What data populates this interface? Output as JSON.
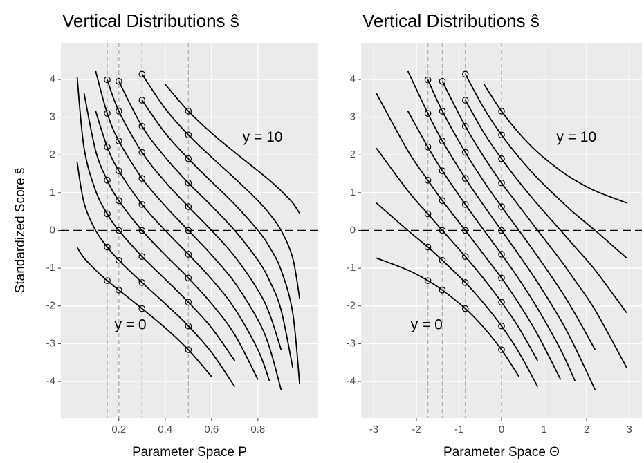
{
  "chart_data": [
    {
      "type": "line",
      "title": "Vertical Distributions ŝ",
      "xlabel": "Parameter Space P",
      "ylabel": "Standardized Score ŝ",
      "color": "#000000",
      "x": [
        0.02,
        0.05,
        0.1,
        0.15,
        0.2,
        0.3,
        0.4,
        0.5,
        0.6,
        0.7,
        0.8,
        0.85,
        0.9,
        0.95,
        0.98
      ],
      "series": [
        {
          "values": [
            -0.45,
            -0.73,
            -1.05,
            -1.33,
            -1.58,
            -2.07,
            -2.58,
            -3.16,
            -3.87,
            null,
            null,
            null,
            null,
            null,
            null
          ]
        },
        {
          "values": [
            1.81,
            0.73,
            0,
            -0.44,
            -0.79,
            -1.38,
            -1.94,
            -2.53,
            -3.23,
            -4.14,
            null,
            null,
            null,
            null,
            null
          ]
        },
        {
          "values": [
            4.07,
            2.18,
            1.05,
            0.44,
            0,
            -0.69,
            -1.29,
            -1.9,
            -2.58,
            -3.45,
            null,
            null,
            null,
            null,
            null
          ]
        },
        {
          "values": [
            null,
            3.63,
            2.11,
            1.33,
            0.79,
            0,
            -0.65,
            -1.26,
            -1.94,
            -2.76,
            -3.95,
            null,
            null,
            null,
            null
          ]
        },
        {
          "values": [
            null,
            null,
            3.16,
            2.21,
            1.58,
            0.69,
            0,
            -0.63,
            -1.29,
            -2.07,
            -3.16,
            -3.99,
            null,
            null,
            null
          ]
        },
        {
          "values": [
            null,
            null,
            4.22,
            3.1,
            2.37,
            1.38,
            0.65,
            0,
            -0.65,
            -1.38,
            -2.37,
            -3.1,
            -4.22,
            null,
            null
          ]
        },
        {
          "values": [
            null,
            null,
            null,
            3.99,
            3.16,
            2.07,
            1.29,
            0.63,
            0,
            -0.69,
            -1.58,
            -2.21,
            -3.16,
            null,
            null
          ]
        },
        {
          "values": [
            null,
            null,
            null,
            null,
            3.95,
            2.76,
            1.94,
            1.26,
            0.65,
            0,
            -0.79,
            -1.33,
            -2.11,
            -3.63,
            null
          ]
        },
        {
          "values": [
            null,
            null,
            null,
            null,
            null,
            3.45,
            2.58,
            1.9,
            1.29,
            0.69,
            0,
            -0.44,
            -1.05,
            -2.18,
            -4.07
          ]
        },
        {
          "values": [
            null,
            null,
            null,
            null,
            null,
            4.14,
            3.23,
            2.53,
            1.94,
            1.38,
            0.79,
            0.44,
            0,
            -0.73,
            -1.81
          ]
        },
        {
          "values": [
            null,
            null,
            null,
            null,
            null,
            null,
            3.87,
            3.16,
            2.58,
            2.07,
            1.58,
            1.33,
            1.05,
            0.73,
            0.45
          ]
        }
      ],
      "vlines": [
        0.15,
        0.2,
        0.3,
        0.5
      ],
      "hline": 0,
      "xlim": [
        -0.05,
        1.06
      ],
      "ylim": [
        -4.97,
        4.97
      ],
      "xticks": [
        0.2,
        0.4,
        0.6,
        0.8
      ],
      "yticks": [
        -4,
        -3,
        -2,
        -1,
        0,
        1,
        2,
        3,
        4
      ],
      "grid": true,
      "annotations": [
        {
          "text": "y = 10",
          "x": 0.82,
          "y": 2.45
        },
        {
          "text": "y = 0",
          "x": 0.25,
          "y": -2.52
        }
      ]
    },
    {
      "type": "line",
      "title": "Vertical Distributions ŝ",
      "xlabel": "Parameter Space Θ",
      "color": "#000000",
      "x": [
        -2.94,
        -2.2,
        -1.73,
        -1.39,
        -0.85,
        -0.41,
        0,
        0.41,
        0.85,
        1.39,
        1.73,
        2.2,
        2.94
      ],
      "series": [
        {
          "values": [
            -0.73,
            -1.05,
            -1.33,
            -1.58,
            -2.07,
            -2.58,
            -3.16,
            -3.87,
            null,
            null,
            null,
            null,
            null
          ]
        },
        {
          "values": [
            0.73,
            0,
            -0.44,
            -0.79,
            -1.38,
            -1.94,
            -2.53,
            -3.23,
            -4.14,
            null,
            null,
            null,
            null
          ]
        },
        {
          "values": [
            2.18,
            1.05,
            0.44,
            0,
            -0.69,
            -1.29,
            -1.9,
            -2.58,
            -3.45,
            null,
            null,
            null,
            null
          ]
        },
        {
          "values": [
            3.63,
            2.11,
            1.33,
            0.79,
            0,
            -0.65,
            -1.26,
            -1.94,
            -2.76,
            -3.95,
            null,
            null,
            null
          ]
        },
        {
          "values": [
            null,
            3.16,
            2.21,
            1.58,
            0.69,
            0,
            -0.63,
            -1.29,
            -2.07,
            -3.16,
            -3.99,
            null,
            null
          ]
        },
        {
          "values": [
            null,
            4.22,
            3.1,
            2.37,
            1.38,
            0.65,
            0,
            -0.65,
            -1.38,
            -2.37,
            -3.1,
            -4.22,
            null
          ]
        },
        {
          "values": [
            null,
            null,
            3.99,
            3.16,
            2.07,
            1.29,
            0.63,
            0,
            -0.69,
            -1.58,
            -2.21,
            -3.16,
            null
          ]
        },
        {
          "values": [
            null,
            null,
            null,
            3.95,
            2.76,
            1.94,
            1.26,
            0.65,
            0,
            -0.79,
            -1.33,
            -2.11,
            -3.63
          ]
        },
        {
          "values": [
            null,
            null,
            null,
            null,
            3.45,
            2.58,
            1.9,
            1.29,
            0.69,
            0,
            -0.44,
            -1.05,
            -2.18
          ]
        },
        {
          "values": [
            null,
            null,
            null,
            null,
            4.14,
            3.23,
            2.53,
            1.94,
            1.38,
            0.79,
            0.44,
            0,
            -0.73
          ]
        },
        {
          "values": [
            null,
            null,
            null,
            null,
            null,
            3.87,
            3.16,
            2.58,
            2.07,
            1.58,
            1.33,
            1.05,
            0.73
          ]
        }
      ],
      "vlines": [
        -1.73,
        -1.39,
        -0.85,
        0
      ],
      "hline": 0,
      "xlim": [
        -3.3,
        3.3
      ],
      "ylim": [
        -4.97,
        4.97
      ],
      "xticks": [
        -3,
        -2,
        -1,
        0,
        1,
        2,
        3
      ],
      "yticks": [
        -4,
        -3,
        -2,
        -1,
        0,
        1,
        2,
        3,
        4
      ],
      "grid": true,
      "annotations": [
        {
          "text": "y = 10",
          "x": 1.76,
          "y": 2.45
        },
        {
          "text": "y = 0",
          "x": -1.76,
          "y": -2.52
        }
      ]
    }
  ]
}
